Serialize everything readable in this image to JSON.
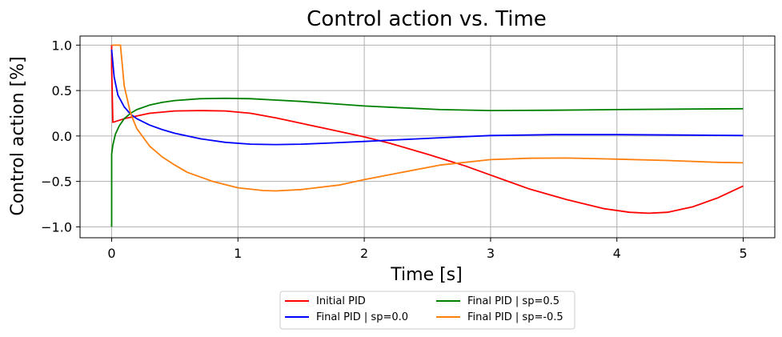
{
  "chart_data": {
    "type": "line",
    "title": "Control action vs. Time",
    "xlabel": "Time [s]",
    "ylabel": "Control action [%]",
    "xlim": [
      -0.25,
      5.25
    ],
    "ylim": [
      -1.12,
      1.1
    ],
    "xticks": [
      0,
      1,
      2,
      3,
      4,
      5
    ],
    "xtick_labels": [
      "0",
      "1",
      "2",
      "3",
      "4",
      "5"
    ],
    "yticks": [
      -1.0,
      -0.5,
      0.0,
      0.5,
      1.0
    ],
    "ytick_labels": [
      "−1.0",
      "−0.5",
      "0.0",
      "0.5",
      "1.0"
    ],
    "grid": true,
    "legend_position": "below-center",
    "series": [
      {
        "name": "Initial PID",
        "color": "#ff0000",
        "x": [
          0,
          0,
          0.01,
          0.1,
          0.3,
          0.5,
          0.7,
          0.9,
          1.1,
          1.3,
          1.5,
          1.7,
          1.9,
          2.0,
          2.2,
          2.5,
          2.8,
          3.0,
          3.3,
          3.6,
          3.9,
          4.1,
          4.25,
          4.4,
          4.6,
          4.8,
          5.0
        ],
        "y": [
          1.0,
          0.75,
          0.15,
          0.19,
          0.25,
          0.275,
          0.28,
          0.275,
          0.25,
          0.2,
          0.14,
          0.08,
          0.02,
          -0.01,
          -0.08,
          -0.2,
          -0.33,
          -0.43,
          -0.58,
          -0.7,
          -0.8,
          -0.84,
          -0.85,
          -0.84,
          -0.78,
          -0.68,
          -0.55
        ]
      },
      {
        "name": "Final PID | sp=0.0",
        "color": "#0000ff",
        "x": [
          0,
          0.02,
          0.05,
          0.1,
          0.15,
          0.2,
          0.3,
          0.4,
          0.5,
          0.7,
          0.9,
          1.1,
          1.3,
          1.5,
          1.7,
          2.0,
          2.3,
          2.6,
          3.0,
          3.5,
          4.0,
          4.5,
          5.0
        ],
        "y": [
          0.95,
          0.65,
          0.45,
          0.32,
          0.24,
          0.19,
          0.12,
          0.07,
          0.03,
          -0.03,
          -0.07,
          -0.09,
          -0.095,
          -0.09,
          -0.08,
          -0.06,
          -0.04,
          -0.02,
          0.005,
          0.015,
          0.015,
          0.01,
          0.005
        ]
      },
      {
        "name": "Final PID | sp=0.5",
        "color": "#008000",
        "x": [
          0,
          0,
          0.01,
          0.03,
          0.06,
          0.1,
          0.15,
          0.2,
          0.3,
          0.4,
          0.5,
          0.7,
          0.9,
          1.1,
          1.3,
          1.5,
          1.8,
          2.0,
          2.3,
          2.6,
          3.0,
          3.5,
          4.0,
          4.5,
          5.0
        ],
        "y": [
          -1.0,
          -0.2,
          -0.1,
          0.02,
          0.11,
          0.19,
          0.25,
          0.29,
          0.34,
          0.37,
          0.39,
          0.41,
          0.415,
          0.41,
          0.395,
          0.38,
          0.35,
          0.33,
          0.31,
          0.29,
          0.28,
          0.283,
          0.29,
          0.296,
          0.3
        ]
      },
      {
        "name": "Final PID | sp=-0.5",
        "color": "#ff7f0e",
        "x": [
          0,
          0.07,
          0.1,
          0.15,
          0.2,
          0.3,
          0.4,
          0.5,
          0.6,
          0.8,
          1.0,
          1.2,
          1.3,
          1.5,
          1.8,
          2.0,
          2.3,
          2.6,
          3.0,
          3.3,
          3.6,
          4.0,
          4.4,
          4.8,
          5.0
        ],
        "y": [
          1.0,
          1.0,
          0.55,
          0.25,
          0.08,
          -0.11,
          -0.23,
          -0.32,
          -0.4,
          -0.5,
          -0.57,
          -0.6,
          -0.605,
          -0.59,
          -0.54,
          -0.48,
          -0.4,
          -0.32,
          -0.26,
          -0.245,
          -0.243,
          -0.255,
          -0.27,
          -0.29,
          -0.295
        ]
      }
    ]
  }
}
